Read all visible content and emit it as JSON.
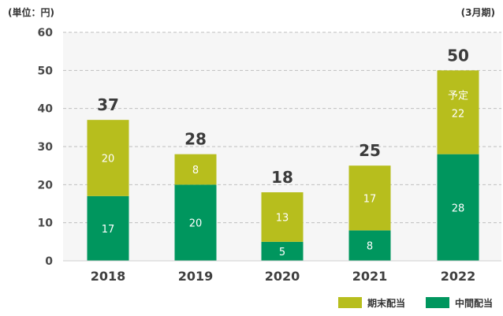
{
  "chart_data": {
    "type": "bar",
    "stacked": true,
    "title": "",
    "unit_label": "(単位：円)",
    "period_label": "(3月期)",
    "xlabel": "",
    "ylabel": "",
    "ylim": [
      0,
      60
    ],
    "yticks": [
      0,
      10,
      20,
      30,
      40,
      50,
      60
    ],
    "grid": true,
    "legend_position": "bottom-right",
    "categories": [
      "2018",
      "2019",
      "2020",
      "2021",
      "2022"
    ],
    "series": [
      {
        "name": "中間配当",
        "color": "#00965e",
        "values": [
          17,
          20,
          5,
          8,
          28
        ]
      },
      {
        "name": "期末配当",
        "color": "#b7be1d",
        "values": [
          20,
          8,
          13,
          17,
          22
        ]
      }
    ],
    "totals": [
      37,
      28,
      18,
      25,
      50
    ],
    "annotations": [
      {
        "category": "2022",
        "series": "期末配当",
        "text": "予定"
      }
    ],
    "legend_order": [
      "期末配当",
      "中間配当"
    ],
    "colors": {
      "plot_background": "#f6f6f6",
      "gridline": "#bfbfbf",
      "axis_text": "#4a4a4a",
      "total_text": "#3b3b3b"
    }
  }
}
